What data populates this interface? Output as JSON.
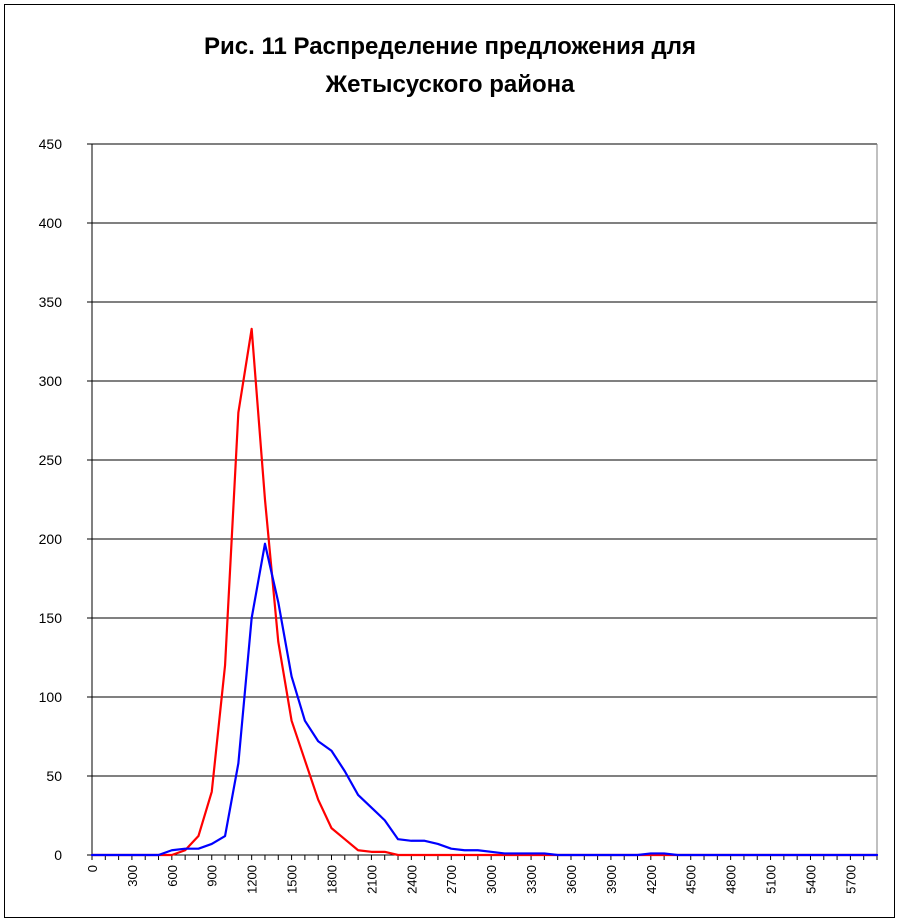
{
  "chart_data": {
    "type": "line",
    "title_line1": "Рис. 11 Распределение предложения для",
    "title_line2": "Жетысуского района",
    "xlabel": "",
    "ylabel": "",
    "ylim": [
      0,
      450
    ],
    "y_ticks": [
      0,
      50,
      100,
      150,
      200,
      250,
      300,
      350,
      400,
      450
    ],
    "x_tick_labels": [
      "0",
      "300",
      "600",
      "900",
      "1200",
      "1500",
      "1800",
      "2100",
      "2400",
      "2700",
      "3000",
      "3300",
      "3600",
      "3900",
      "4200",
      "4500",
      "4800",
      "5100",
      "5400",
      "5700"
    ],
    "grid": true,
    "legend": "none",
    "x": [
      0,
      100,
      200,
      300,
      400,
      500,
      600,
      700,
      800,
      900,
      1000,
      1100,
      1200,
      1300,
      1400,
      1500,
      1600,
      1700,
      1800,
      1900,
      2000,
      2100,
      2200,
      2300,
      2400,
      2500,
      2600,
      2700,
      2800,
      2900,
      3000,
      3100,
      3200,
      3300,
      3400,
      3500,
      3600,
      3700,
      3800,
      3900,
      4000,
      4100,
      4200,
      4300,
      4400,
      4500,
      4600,
      4700,
      4800,
      4900,
      5000,
      5100,
      5200,
      5300,
      5400,
      5500,
      5600,
      5700,
      5800,
      5900
    ],
    "series": [
      {
        "color": "#ff0000",
        "values": [
          0,
          0,
          0,
          0,
          0,
          0,
          0,
          3,
          12,
          40,
          120,
          280,
          333,
          225,
          135,
          85,
          60,
          35,
          17,
          10,
          3,
          2,
          2,
          0,
          0,
          0,
          0,
          0,
          0,
          0,
          0,
          0,
          0,
          0,
          0,
          0,
          0,
          0,
          0,
          0,
          0,
          0,
          0,
          0,
          0,
          0,
          0,
          0,
          0,
          0,
          0,
          0,
          0,
          0,
          0,
          0,
          0,
          0,
          0,
          0
        ]
      },
      {
        "color": "#0000ff",
        "values": [
          0,
          0,
          0,
          0,
          0,
          0,
          3,
          4,
          4,
          7,
          12,
          58,
          150,
          197,
          160,
          113,
          85,
          72,
          66,
          53,
          38,
          30,
          22,
          10,
          9,
          9,
          7,
          4,
          3,
          3,
          2,
          1,
          1,
          1,
          1,
          0,
          0,
          0,
          0,
          0,
          0,
          0,
          1,
          1,
          0,
          0,
          0,
          0,
          0,
          0,
          0,
          0,
          0,
          0,
          0,
          0,
          0,
          0,
          0,
          0
        ]
      }
    ]
  }
}
